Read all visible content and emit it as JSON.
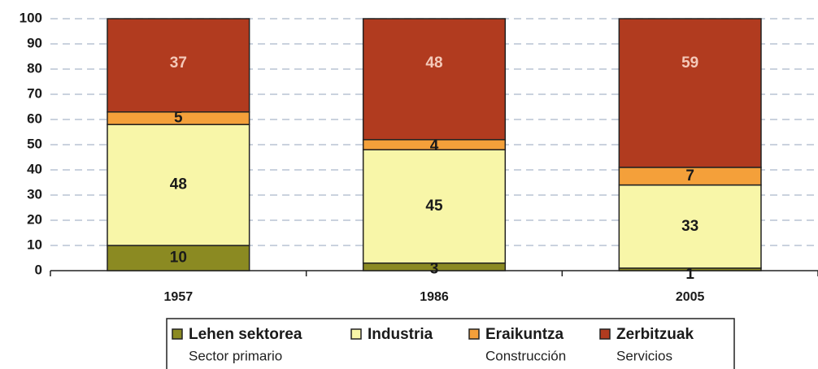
{
  "chart_data": {
    "type": "stacked_bar",
    "categories": [
      "1957",
      "1986",
      "2005"
    ],
    "series": [
      {
        "name": "Lehen sektorea",
        "translation": "Sector primario",
        "color": "#8b8a22",
        "label_color": "#1a1a1a",
        "values": [
          10,
          3,
          1
        ]
      },
      {
        "name": "Industria",
        "color": "#f8f6a8",
        "label_color": "#1a1a1a",
        "values": [
          48,
          45,
          33
        ]
      },
      {
        "name": "Eraikuntza",
        "translation": "Construcción",
        "color": "#f4a03a",
        "label_color": "#1a1a1a",
        "values": [
          5,
          4,
          7
        ]
      },
      {
        "name": "Zerbitzuak",
        "translation": "Servicios",
        "color": "#b13b1f",
        "label_color": "#f4c9b9",
        "values": [
          37,
          48,
          59
        ]
      }
    ],
    "ylim": [
      0,
      100
    ],
    "yticks": [
      0,
      10,
      20,
      30,
      40,
      50,
      60,
      70,
      80,
      90,
      100
    ],
    "grid": true,
    "legend": "bottom"
  }
}
